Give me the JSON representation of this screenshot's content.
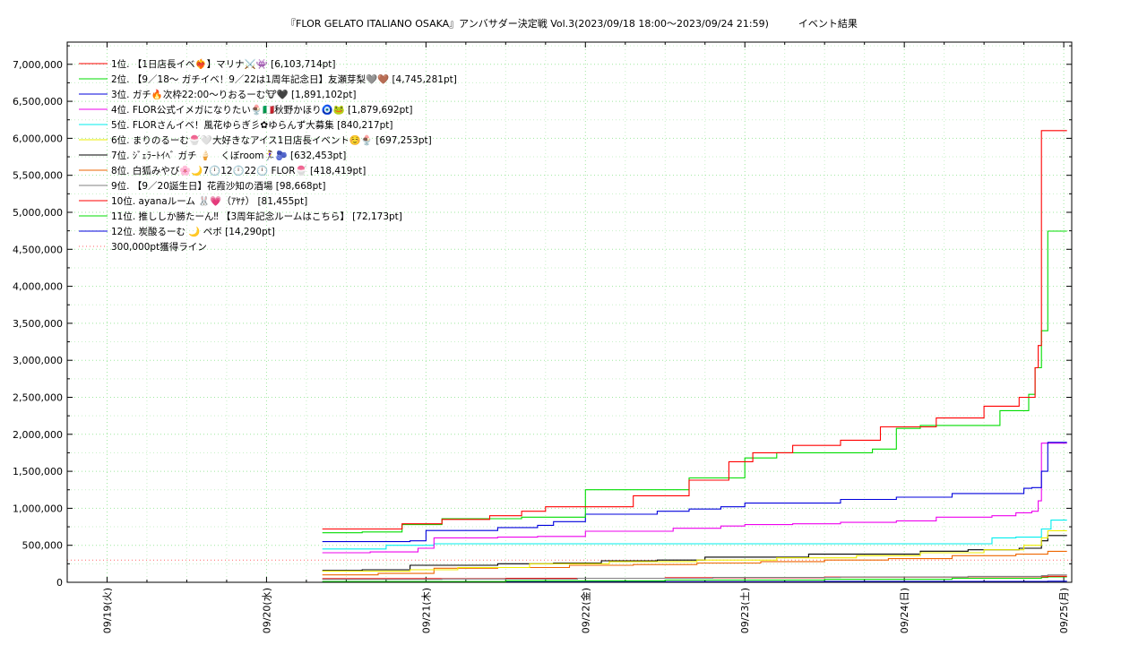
{
  "chart_data": {
    "type": "line",
    "title": "『FLOR GELATO ITALIANO OSAKA』アンバサダー決定戦 Vol.3(2023/09/18 18:00～2023/09/24 21:59)　　　イベント結果",
    "xlabel": "",
    "ylabel": "",
    "x_ticks": [
      "09/19(火)",
      "09/20(水)",
      "09/21(木)",
      "09/22(金)",
      "09/23(土)",
      "09/24(日)",
      "09/25(月)"
    ],
    "xlim": [
      -0.25,
      6.05
    ],
    "ylim": [
      0,
      7300000
    ],
    "y_ticks": [
      0,
      500000,
      1000000,
      1500000,
      2000000,
      2500000,
      3000000,
      3500000,
      4000000,
      4500000,
      5000000,
      5500000,
      6000000,
      6500000,
      7000000
    ],
    "y_tick_labels": [
      "0",
      "500,000",
      "1,000,000",
      "1,500,000",
      "2,000,000",
      "2,500,000",
      "3,000,000",
      "3,500,000",
      "4,000,000",
      "4,500,000",
      "5,000,000",
      "5,500,000",
      "6,000,000",
      "6,500,000",
      "7,000,000"
    ],
    "grid": true,
    "legend_position": "top-left",
    "series": [
      {
        "name": " 1位. 【1日店長イベ❤️‍🔥】マリナ⚔️👾 [6,103,714pt]",
        "color": "#ff0000",
        "x": [
          1.35,
          1.6,
          1.85,
          2.1,
          2.4,
          2.6,
          2.75,
          3.0,
          3.3,
          3.55,
          3.65,
          3.9,
          4.05,
          4.3,
          4.45,
          4.6,
          4.85,
          5.0,
          5.2,
          5.35,
          5.5,
          5.65,
          5.72,
          5.75,
          5.78,
          5.82,
          5.84,
          5.86,
          5.9,
          6.02
        ],
        "y": [
          720000,
          720000,
          790000,
          850000,
          900000,
          960000,
          1020000,
          1020000,
          1170000,
          1170000,
          1380000,
          1630000,
          1750000,
          1850000,
          1850000,
          1920000,
          2100000,
          2100000,
          2220000,
          2220000,
          2380000,
          2380000,
          2500000,
          2500000,
          2500000,
          2900000,
          3200000,
          6103714,
          6103714,
          6103714
        ]
      },
      {
        "name": " 2位. 【9／18～ ガチイベ！9／22は1周年記念日】友瀬芽梨🩶🤎 [4,745,281pt]",
        "color": "#00dd00",
        "x": [
          1.35,
          1.6,
          1.85,
          2.1,
          2.45,
          2.6,
          2.85,
          3.0,
          3.3,
          3.55,
          3.65,
          3.9,
          4.0,
          4.2,
          4.45,
          4.6,
          4.8,
          4.95,
          5.1,
          5.45,
          5.6,
          5.72,
          5.78,
          5.82,
          5.86,
          5.9,
          6.02
        ],
        "y": [
          670000,
          680000,
          780000,
          860000,
          860000,
          880000,
          880000,
          1250000,
          1250000,
          1250000,
          1410000,
          1410000,
          1680000,
          1750000,
          1750000,
          1750000,
          1800000,
          2080000,
          2120000,
          2120000,
          2320000,
          2320000,
          2540000,
          2900000,
          3400000,
          4745281,
          4745281
        ]
      },
      {
        "name": " 3位. ガチ🔥次枠22:00〜りおるーむ🐮🖤 [1,891,102pt]",
        "color": "#0000dd",
        "x": [
          1.35,
          1.9,
          2.0,
          2.45,
          2.7,
          2.8,
          3.0,
          3.3,
          3.45,
          3.65,
          3.85,
          4.0,
          4.3,
          4.6,
          4.95,
          5.3,
          5.55,
          5.75,
          5.8,
          5.86,
          5.9,
          6.02
        ],
        "y": [
          550000,
          560000,
          700000,
          740000,
          770000,
          820000,
          920000,
          920000,
          960000,
          990000,
          1020000,
          1070000,
          1070000,
          1120000,
          1150000,
          1200000,
          1200000,
          1270000,
          1280000,
          1500000,
          1891102,
          1891102
        ]
      },
      {
        "name": " 4位. FLOR公式イメガになりたい🍨🇮🇹秋野かほり🧿🐸 [1,879,692pt]",
        "color": "#ee00ee",
        "x": [
          1.35,
          1.65,
          1.95,
          2.05,
          2.45,
          2.7,
          3.0,
          3.35,
          3.55,
          3.85,
          4.0,
          4.3,
          4.6,
          4.95,
          5.2,
          5.55,
          5.7,
          5.8,
          5.84,
          5.86,
          5.9,
          6.02
        ],
        "y": [
          400000,
          410000,
          460000,
          600000,
          610000,
          620000,
          690000,
          690000,
          730000,
          760000,
          780000,
          790000,
          810000,
          830000,
          880000,
          900000,
          940000,
          960000,
          1100000,
          1879692,
          1879692,
          1879692
        ]
      },
      {
        "name": " 5位. FLORさんイベ！風花ゆらぎ彡✿ゆらんず大募集 [840,217pt]",
        "color": "#00eeee",
        "x": [
          1.35,
          1.65,
          1.75,
          1.95,
          2.05,
          3.0,
          4.0,
          5.0,
          5.55,
          5.7,
          5.82,
          5.86,
          5.92,
          6.02
        ],
        "y": [
          450000,
          450000,
          500000,
          500000,
          520000,
          520000,
          520000,
          520000,
          600000,
          610000,
          610000,
          720000,
          840217,
          840217
        ]
      },
      {
        "name": " 6位. まりのるーむ🍧🤍大好きなアイス1日店長イベント☺️🍨 [697,253pt]",
        "color": "#eeee00",
        "x": [
          1.35,
          1.9,
          2.2,
          2.65,
          3.15,
          3.7,
          4.2,
          4.7,
          5.1,
          5.5,
          5.75,
          5.86,
          5.9,
          6.02
        ],
        "y": [
          150000,
          170000,
          200000,
          250000,
          280000,
          300000,
          330000,
          360000,
          400000,
          440000,
          500000,
          600000,
          697253,
          697253
        ]
      },
      {
        "name": " 7位. ｼﾞｪﾗｰﾄｲﾍﾞ ガチ 🍦　くぼroom🏃‍♀️🫐 [632,453pt]",
        "color": "#000000",
        "x": [
          1.35,
          1.6,
          1.9,
          2.2,
          2.45,
          2.8,
          3.1,
          3.45,
          3.75,
          4.05,
          4.4,
          4.75,
          5.1,
          5.4,
          5.72,
          5.82,
          5.86,
          5.9,
          6.02
        ],
        "y": [
          160000,
          170000,
          230000,
          230000,
          250000,
          260000,
          290000,
          300000,
          340000,
          340000,
          380000,
          380000,
          420000,
          440000,
          460000,
          460000,
          560000,
          632453,
          632453
        ]
      },
      {
        "name": " 8位. 白狐みやび🌸🌙7🕛12🕛22🕛 FLOR🍧 [418,419pt]",
        "color": "#ee6600",
        "x": [
          1.35,
          1.7,
          2.05,
          2.45,
          2.9,
          3.3,
          3.7,
          4.1,
          4.5,
          4.9,
          5.3,
          5.7,
          5.9,
          6.02
        ],
        "y": [
          100000,
          120000,
          190000,
          200000,
          230000,
          240000,
          260000,
          280000,
          300000,
          320000,
          360000,
          380000,
          418419,
          418419
        ]
      },
      {
        "name": " 9位. 【9／20誕生日】花霞沙知の酒場 [98,668pt]",
        "color": "#808080",
        "x": [
          1.35,
          2.1,
          2.95,
          3.8,
          4.6,
          5.4,
          5.86,
          5.9,
          6.02
        ],
        "y": [
          40000,
          45000,
          55000,
          65000,
          72000,
          80000,
          90000,
          98668,
          98668
        ]
      },
      {
        "name": "10位. ayanaルーム 🐰💗（ｱﾔﾅ）  [81,455pt]",
        "color": "#ff0000",
        "x": [
          1.35,
          2.5,
          3.5,
          4.5,
          5.4,
          5.9,
          6.02
        ],
        "y": [
          50000,
          55000,
          62000,
          70000,
          75000,
          81455,
          81455
        ]
      },
      {
        "name": "11位. 推ししか勝たーん‼ 【3周年記念ルームはこちら】 [72,173pt]",
        "color": "#00dd00",
        "x": [
          1.35,
          2.5,
          3.5,
          4.5,
          5.3,
          5.86,
          5.9,
          6.02
        ],
        "y": [
          10000,
          20000,
          30000,
          40000,
          55000,
          65000,
          72173,
          72173
        ]
      },
      {
        "name": "12位. 炭酸るーむ 🌙 ペボ [14,290pt]",
        "color": "#0000dd",
        "x": [
          1.35,
          3.0,
          4.5,
          5.9,
          6.02
        ],
        "y": [
          5000,
          8000,
          11000,
          14290,
          14290
        ]
      },
      {
        "name": "300,000pt獲得ライン",
        "color": "#ff6666",
        "dashed": true,
        "x": [
          -0.25,
          6.05
        ],
        "y": [
          300000,
          300000
        ]
      }
    ]
  }
}
